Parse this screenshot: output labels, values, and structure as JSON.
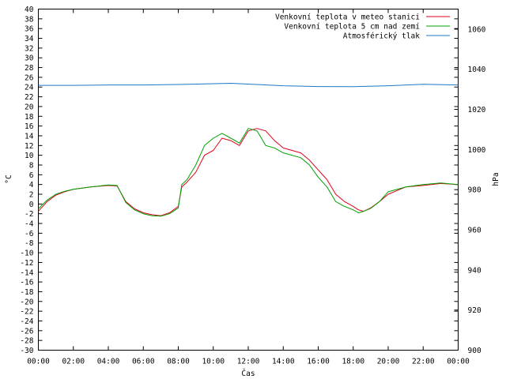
{
  "chart_data": {
    "type": "line",
    "title": "",
    "xlabel": "Čas",
    "ylabel_left": "°C",
    "ylabel_right": "hPa",
    "grid": false,
    "legend_position": "top-right",
    "x_ticks": [
      "00:00",
      "02:00",
      "04:00",
      "06:00",
      "08:00",
      "10:00",
      "12:00",
      "14:00",
      "16:00",
      "18:00",
      "20:00",
      "22:00",
      "00:00"
    ],
    "x_range_hours": [
      0,
      24
    ],
    "y_left": {
      "min": -30,
      "max": 40,
      "step": 2
    },
    "y_right": {
      "min": 900,
      "max": 1070,
      "ticks": [
        900,
        920,
        940,
        960,
        980,
        1000,
        1020,
        1040,
        1060
      ]
    },
    "series": [
      {
        "name": "Venkovní teplota v meteo stanici",
        "color": "#e0001b",
        "axis": "left",
        "x": [
          0,
          0.5,
          1,
          1.5,
          2,
          3,
          4,
          4.5,
          5,
          5.5,
          6,
          6.5,
          7,
          7.5,
          8,
          8.2,
          8.5,
          9,
          9.5,
          10,
          10.5,
          11,
          11.5,
          12,
          12.5,
          13,
          13.5,
          14,
          15,
          15.5,
          16,
          16.5,
          17,
          17.5,
          18,
          18.3,
          18.6,
          19,
          19.5,
          20,
          21,
          22,
          23,
          24
        ],
        "y": [
          -1.5,
          0.5,
          1.8,
          2.5,
          3.0,
          3.5,
          3.8,
          3.7,
          0.5,
          -1.0,
          -1.8,
          -2.2,
          -2.4,
          -1.8,
          -0.5,
          3.5,
          4.5,
          6.5,
          10.0,
          11.0,
          13.5,
          13.0,
          12.0,
          15.0,
          15.5,
          15.0,
          13.0,
          11.5,
          10.5,
          9.0,
          7.0,
          5.0,
          2.0,
          0.5,
          -0.5,
          -1.2,
          -1.5,
          -0.8,
          0.5,
          2.0,
          3.5,
          3.8,
          4.2,
          4.0
        ]
      },
      {
        "name": "Venkovní teplota 5 cm nad zemí",
        "color": "#00a000",
        "axis": "left",
        "x": [
          0,
          0.5,
          1,
          1.5,
          2,
          3,
          4,
          4.5,
          5,
          5.5,
          6,
          6.5,
          7,
          7.5,
          8,
          8.2,
          8.5,
          9,
          9.5,
          10,
          10.5,
          11,
          11.5,
          12,
          12.5,
          13,
          13.5,
          14,
          15,
          15.5,
          16,
          16.5,
          17,
          17.5,
          18,
          18.3,
          18.6,
          19,
          19.5,
          20,
          21,
          22,
          23,
          24
        ],
        "y": [
          -1.0,
          0.8,
          2.0,
          2.6,
          3.0,
          3.5,
          3.9,
          3.8,
          0.3,
          -1.2,
          -2.0,
          -2.4,
          -2.5,
          -2.0,
          -0.8,
          4.0,
          5.0,
          8.0,
          12.0,
          13.5,
          14.5,
          13.5,
          12.5,
          15.5,
          15.0,
          12.0,
          11.5,
          10.5,
          9.5,
          8.0,
          5.5,
          3.5,
          0.5,
          -0.5,
          -1.2,
          -1.8,
          -1.5,
          -0.9,
          0.5,
          2.5,
          3.5,
          4.0,
          4.3,
          4.0
        ]
      },
      {
        "name": "Atmosférický tlak",
        "color": "#1f78c8",
        "axis": "right",
        "x": [
          0,
          2,
          4,
          6,
          8,
          10,
          11,
          12,
          14,
          16,
          18,
          20,
          22,
          24
        ],
        "y": [
          1032.0,
          1032.0,
          1032.2,
          1032.2,
          1032.4,
          1032.8,
          1033.0,
          1032.6,
          1031.8,
          1031.4,
          1031.3,
          1031.8,
          1032.5,
          1032.2
        ]
      }
    ]
  }
}
